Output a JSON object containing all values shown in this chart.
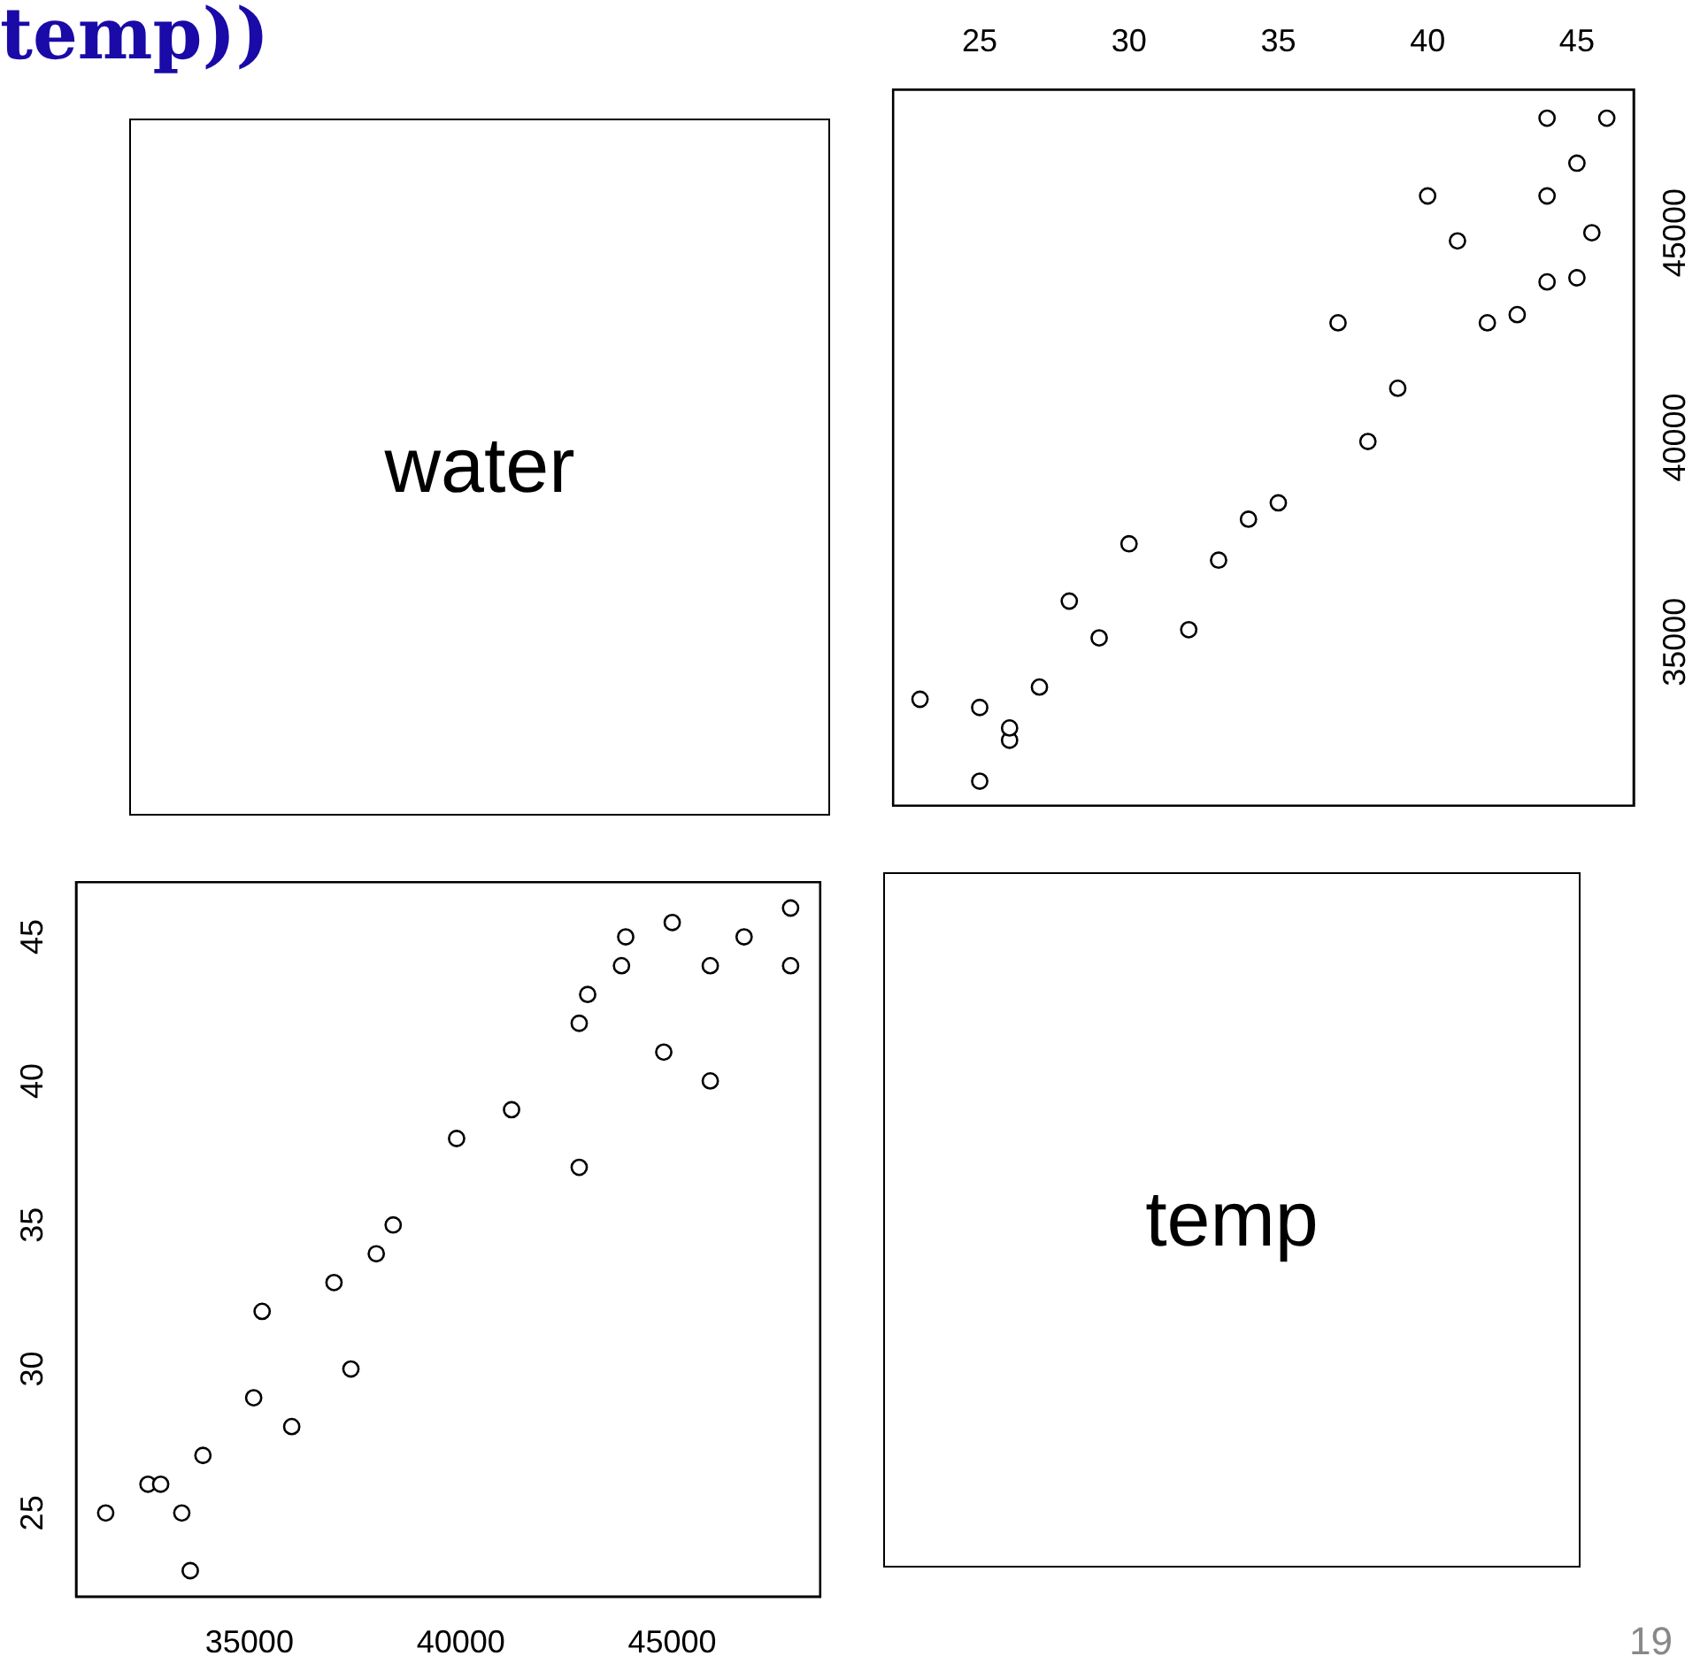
{
  "chart_data": [
    {
      "type": "other",
      "title": "water",
      "annotations": [
        "temp))"
      ]
    },
    {
      "type": "scatter",
      "marker": "circle",
      "xlim": [
        22.1,
        46.9
      ],
      "xticks": [
        25,
        30,
        35,
        40,
        45
      ],
      "ylim": [
        31000,
        48500
      ],
      "yticks": [
        35000,
        40000,
        45000
      ],
      "series": [
        {
          "color": "#000000",
          "x": [
            25,
            26,
            26,
            25,
            23,
            27,
            29,
            28,
            32,
            30,
            33,
            34,
            35,
            38,
            39,
            37,
            42,
            43,
            44,
            45,
            45.5,
            41,
            44,
            40,
            45,
            46,
            44
          ],
          "values": [
            31600,
            32600,
            32900,
            33400,
            33600,
            33900,
            35100,
            36000,
            35300,
            37400,
            37000,
            38000,
            38400,
            39900,
            41200,
            42800,
            42800,
            43000,
            43800,
            43900,
            45000,
            44800,
            45900,
            45900,
            46700,
            47800,
            47800
          ]
        }
      ]
    },
    {
      "type": "scatter",
      "marker": "circle",
      "xlim": [
        30900,
        48500
      ],
      "xticks": [
        35000,
        40000,
        45000
      ],
      "ylim": [
        22.1,
        46.9
      ],
      "yticks": [
        25,
        30,
        35,
        40,
        45
      ],
      "series": [
        {
          "color": "#000000",
          "x": [
            31600,
            32600,
            32900,
            33400,
            33600,
            33900,
            35100,
            36000,
            35300,
            37400,
            37000,
            38000,
            38400,
            39900,
            41200,
            42800,
            42800,
            43000,
            43800,
            43900,
            45000,
            44800,
            45900,
            45900,
            46700,
            47800,
            47800
          ],
          "values": [
            25,
            26,
            26,
            25,
            23,
            27,
            29,
            28,
            32,
            30,
            33,
            34,
            35,
            38,
            39,
            37,
            42,
            43,
            44,
            45,
            45.5,
            41,
            44,
            40,
            45,
            46,
            44
          ]
        }
      ]
    },
    {
      "type": "other",
      "title": "temp",
      "annotations": [
        "19"
      ]
    }
  ]
}
